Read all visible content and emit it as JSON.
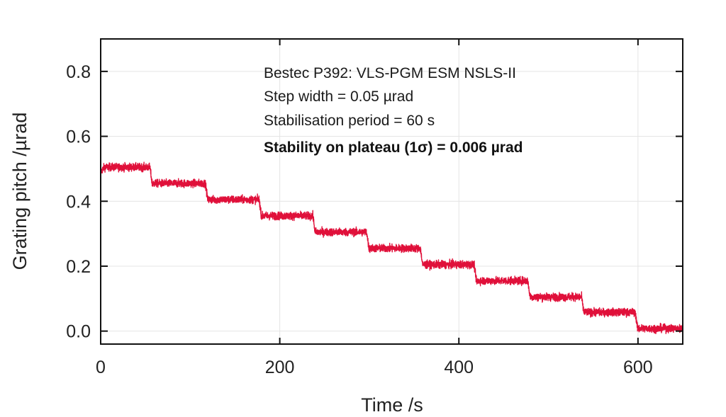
{
  "chart_data": {
    "type": "line",
    "title": "",
    "xlabel": "Time /s",
    "ylabel": "Grating pitch /µrad",
    "xlim": [
      0,
      650
    ],
    "ylim": [
      -0.04,
      0.9
    ],
    "grid": true,
    "xticks": [
      0,
      200,
      400,
      600
    ],
    "xtick_labels": [
      "0",
      "200",
      "400",
      "600"
    ],
    "yticks": [
      0.0,
      0.2,
      0.4,
      0.6,
      0.8
    ],
    "ytick_labels": [
      "0.0",
      "0.2",
      "0.4",
      "0.6",
      "0.8"
    ],
    "annotations": [
      "Bestec P392: VLS-PGM ESM NSLS-II",
      "Step width = 0.05 µrad",
      "Stabilisation period = 60 s",
      "Stability on plateau (1σ) = 0.006  µrad"
    ],
    "series": [
      {
        "name": "Grating pitch",
        "color": "#e0103a",
        "description": "Staircase signal with noise (1σ ≈ 0.006 µrad on each plateau)",
        "plateaus": [
          {
            "t_start": 0,
            "t_end": 55,
            "value": 0.505
          },
          {
            "t_start": 55,
            "t_end": 117,
            "value": 0.455
          },
          {
            "t_start": 117,
            "t_end": 177,
            "value": 0.405
          },
          {
            "t_start": 177,
            "t_end": 237,
            "value": 0.355
          },
          {
            "t_start": 237,
            "t_end": 297,
            "value": 0.305
          },
          {
            "t_start": 297,
            "t_end": 357,
            "value": 0.255
          },
          {
            "t_start": 357,
            "t_end": 417,
            "value": 0.205
          },
          {
            "t_start": 417,
            "t_end": 477,
            "value": 0.155
          },
          {
            "t_start": 477,
            "t_end": 537,
            "value": 0.105
          },
          {
            "t_start": 537,
            "t_end": 597,
            "value": 0.058
          },
          {
            "t_start": 597,
            "t_end": 650,
            "value": 0.008
          }
        ],
        "noise_sigma": 0.006
      }
    ]
  }
}
